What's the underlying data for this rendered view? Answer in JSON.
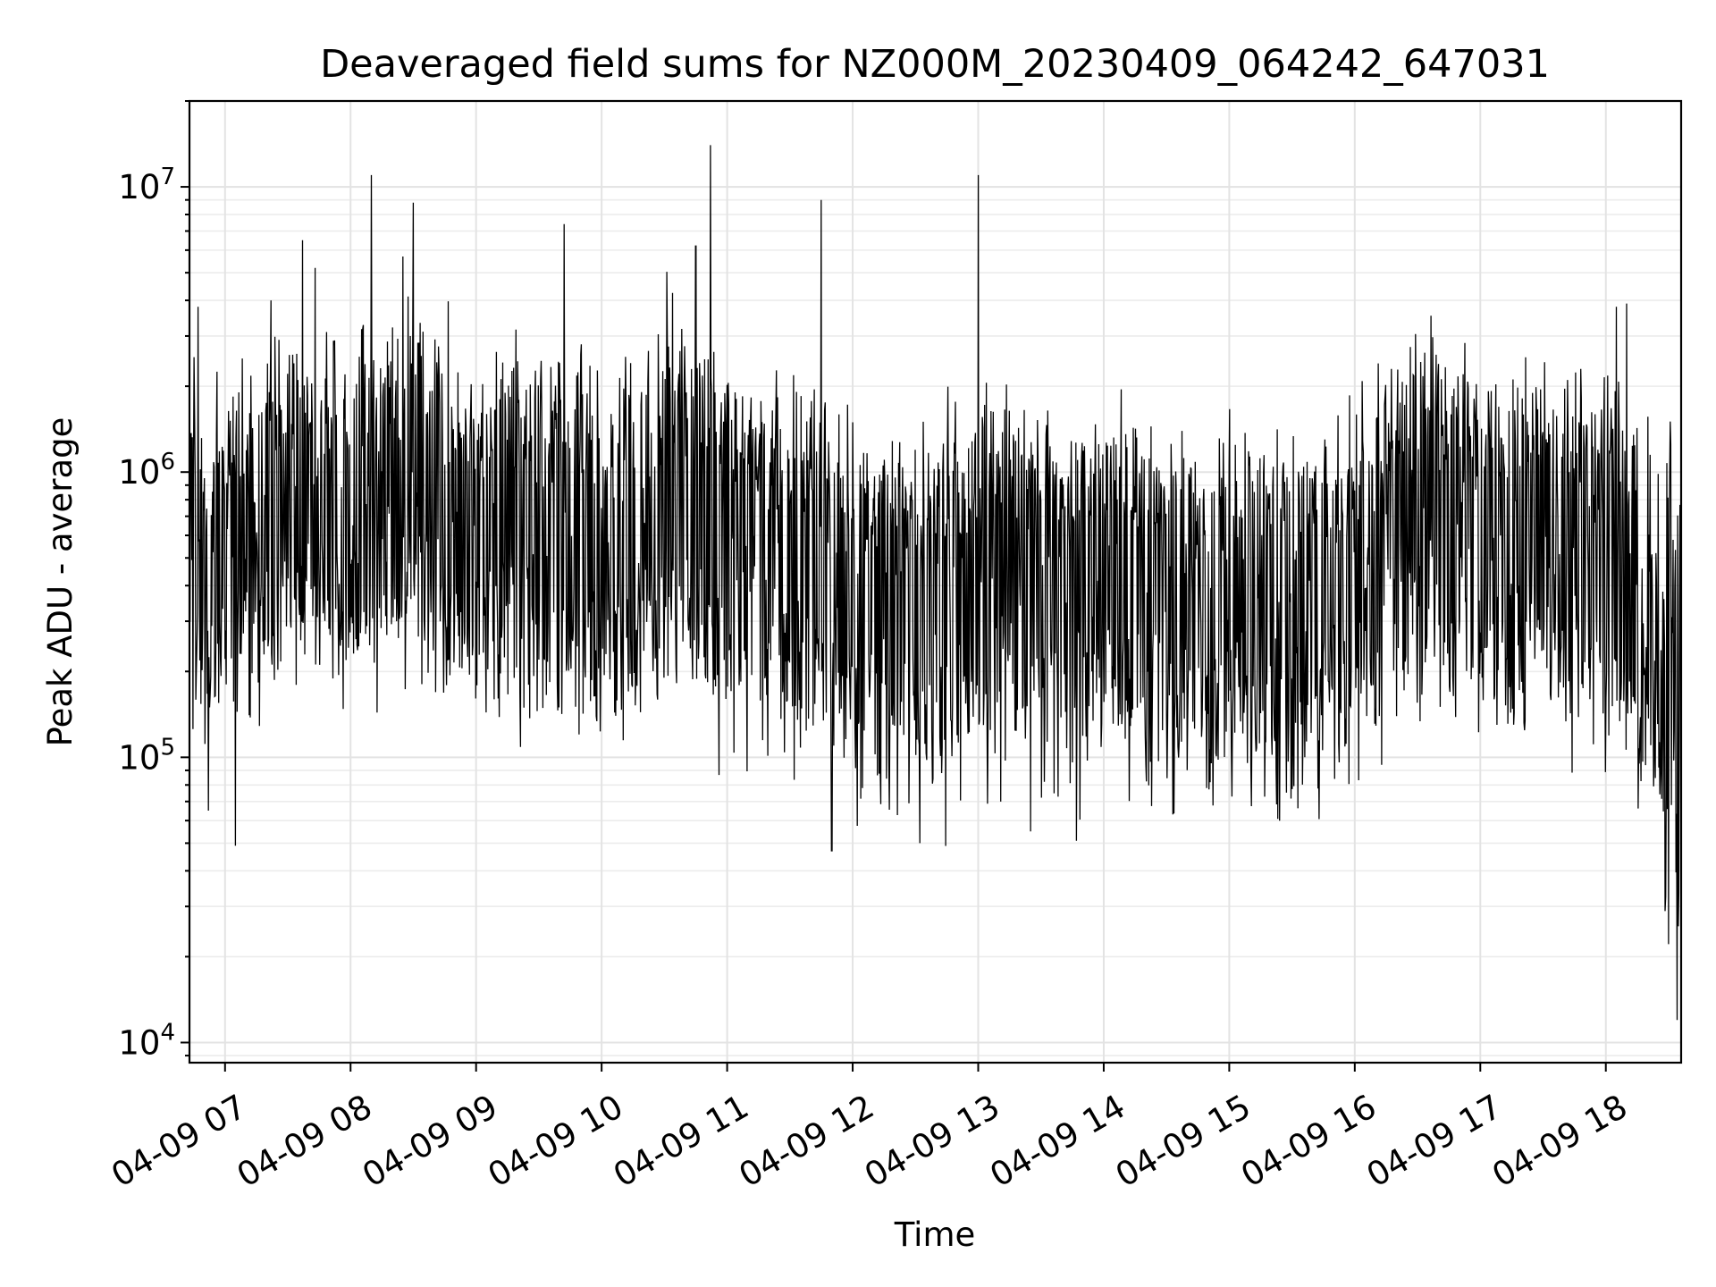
{
  "chart_data": {
    "type": "line",
    "title": "Deaveraged field sums for NZ000M_20230409_064242_647031",
    "xlabel": "Time",
    "ylabel": "Peak ADU - average",
    "x_unit": "time (2023-04-09, hours)",
    "xlim": [
      "2023-04-09 06:43",
      "2023-04-09 18:36"
    ],
    "x_ticks": [
      {
        "label": "04-09 07",
        "time": "2023-04-09 07:00"
      },
      {
        "label": "04-09 08",
        "time": "2023-04-09 08:00"
      },
      {
        "label": "04-09 09",
        "time": "2023-04-09 09:00"
      },
      {
        "label": "04-09 10",
        "time": "2023-04-09 10:00"
      },
      {
        "label": "04-09 11",
        "time": "2023-04-09 11:00"
      },
      {
        "label": "04-09 12",
        "time": "2023-04-09 12:00"
      },
      {
        "label": "04-09 13",
        "time": "2023-04-09 13:00"
      },
      {
        "label": "04-09 14",
        "time": "2023-04-09 14:00"
      },
      {
        "label": "04-09 15",
        "time": "2023-04-09 15:00"
      },
      {
        "label": "04-09 16",
        "time": "2023-04-09 16:00"
      },
      {
        "label": "04-09 17",
        "time": "2023-04-09 17:00"
      },
      {
        "label": "04-09 18",
        "time": "2023-04-09 18:00"
      }
    ],
    "y_scale": "log",
    "ylim": [
      8500,
      20000000
    ],
    "y_ticks": [
      {
        "base": "10",
        "exp": "4",
        "value": 10000
      },
      {
        "base": "10",
        "exp": "5",
        "value": 100000
      },
      {
        "base": "10",
        "exp": "6",
        "value": 1000000
      },
      {
        "base": "10",
        "exp": "7",
        "value": 10000000
      }
    ],
    "grid": true,
    "legend": "none",
    "line_color": "#000000",
    "envelope_note": "dense noisy series; values approximated as a trend envelope with labelled spikes",
    "series": [
      {
        "trend": [
          {
            "t": "06:43",
            "median": 400000,
            "upper": 1200000,
            "lower": 150000
          },
          {
            "t": "07:30",
            "median": 700000,
            "upper": 2000000,
            "lower": 250000
          },
          {
            "t": "08:00",
            "median": 850000,
            "upper": 2500000,
            "lower": 280000
          },
          {
            "t": "08:30",
            "median": 900000,
            "upper": 2600000,
            "lower": 280000
          },
          {
            "t": "09:00",
            "median": 650000,
            "upper": 1800000,
            "lower": 200000
          },
          {
            "t": "09:30",
            "median": 700000,
            "upper": 1900000,
            "lower": 200000
          },
          {
            "t": "10:00",
            "median": 550000,
            "upper": 1500000,
            "lower": 170000
          },
          {
            "t": "10:30",
            "median": 850000,
            "upper": 2500000,
            "lower": 250000
          },
          {
            "t": "11:00",
            "median": 650000,
            "upper": 1700000,
            "lower": 180000
          },
          {
            "t": "11:30",
            "median": 550000,
            "upper": 1400000,
            "lower": 150000
          },
          {
            "t": "12:00",
            "median": 400000,
            "upper": 1100000,
            "lower": 120000
          },
          {
            "t": "12:30",
            "median": 350000,
            "upper": 900000,
            "lower": 100000
          },
          {
            "t": "13:00",
            "median": 450000,
            "upper": 1200000,
            "lower": 130000
          },
          {
            "t": "13:30",
            "median": 450000,
            "upper": 1200000,
            "lower": 130000
          },
          {
            "t": "14:00",
            "median": 450000,
            "upper": 1200000,
            "lower": 130000
          },
          {
            "t": "14:30",
            "median": 330000,
            "upper": 900000,
            "lower": 100000
          },
          {
            "t": "15:00",
            "median": 400000,
            "upper": 1100000,
            "lower": 110000
          },
          {
            "t": "15:30",
            "median": 330000,
            "upper": 850000,
            "lower": 100000
          },
          {
            "t": "16:00",
            "median": 450000,
            "upper": 1200000,
            "lower": 130000
          },
          {
            "t": "16:30",
            "median": 900000,
            "upper": 2300000,
            "lower": 250000
          },
          {
            "t": "17:00",
            "median": 650000,
            "upper": 1700000,
            "lower": 200000
          },
          {
            "t": "17:30",
            "median": 650000,
            "upper": 1700000,
            "lower": 200000
          },
          {
            "t": "18:00",
            "median": 550000,
            "upper": 1500000,
            "lower": 160000
          },
          {
            "t": "18:25",
            "median": 300000,
            "upper": 900000,
            "lower": 80000
          },
          {
            "t": "18:36",
            "median": 80000,
            "upper": 600000,
            "lower": 20000
          }
        ],
        "spikes": [
          {
            "t": "06:47",
            "value": 3800000
          },
          {
            "t": "06:52",
            "value": 65000
          },
          {
            "t": "07:05",
            "value": 49000
          },
          {
            "t": "07:22",
            "value": 4000000
          },
          {
            "t": "07:37",
            "value": 6500000
          },
          {
            "t": "07:43",
            "value": 5200000
          },
          {
            "t": "08:10",
            "value": 11000000
          },
          {
            "t": "08:25",
            "value": 5700000
          },
          {
            "t": "08:30",
            "value": 8800000
          },
          {
            "t": "09:42",
            "value": 7400000
          },
          {
            "t": "10:45",
            "value": 6200000
          },
          {
            "t": "10:52",
            "value": 14000000
          },
          {
            "t": "11:45",
            "value": 9000000
          },
          {
            "t": "11:50",
            "value": 47000
          },
          {
            "t": "12:32",
            "value": 50000
          },
          {
            "t": "13:00",
            "value": 11000000
          },
          {
            "t": "13:25",
            "value": 55000
          },
          {
            "t": "13:47",
            "value": 51000
          },
          {
            "t": "18:05",
            "value": 3800000
          },
          {
            "t": "18:10",
            "value": 3900000
          },
          {
            "t": "18:34",
            "value": 12000
          },
          {
            "t": "18:36",
            "value": 21000
          }
        ]
      }
    ]
  }
}
